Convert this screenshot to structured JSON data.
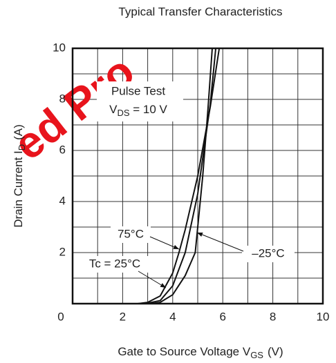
{
  "chart_data": {
    "type": "line",
    "title": "Typical Transfer Characteristics",
    "watermark": "ed Pro",
    "xlabel": {
      "text": "Gate to Source Voltage  V",
      "sub": "GS",
      "unit": "(V)"
    },
    "ylabel": {
      "text": "Drain Current  I",
      "sub": "D",
      "unit": "(A)"
    },
    "annotation": {
      "line1": "Pulse Test",
      "line2_text": "V",
      "line2_sub": "DS",
      "line2_rest": " = 10 V"
    },
    "xlim": [
      0,
      10
    ],
    "ylim": [
      0,
      10
    ],
    "xticks": [
      0,
      2,
      4,
      6,
      8,
      10
    ],
    "yticks": [
      2,
      4,
      6,
      8,
      10
    ],
    "x_minor_grid": [
      1,
      3,
      5,
      7,
      9
    ],
    "y_minor_grid": [
      1,
      3,
      5,
      7,
      9
    ],
    "grid": true,
    "series": [
      {
        "name": "75°C",
        "color": "#111",
        "x": [
          2.6,
          3.0,
          3.5,
          4.0,
          4.25,
          4.5,
          5.0,
          5.5,
          5.86
        ],
        "values": [
          0,
          0.05,
          0.3,
          1.2,
          2,
          2.9,
          5,
          7.7,
          10
        ]
      },
      {
        "name": "Tc = 25°C",
        "color": "#111",
        "x": [
          2.9,
          3.5,
          4.0,
          4.5,
          5.0,
          5.5,
          5.72
        ],
        "values": [
          0,
          0.12,
          0.7,
          2,
          4.3,
          7.8,
          10
        ]
      },
      {
        "name": "–25°C",
        "color": "#111",
        "x": [
          3.1,
          3.5,
          4.0,
          4.5,
          4.9,
          5.2,
          5.4,
          5.58
        ],
        "values": [
          0,
          0.05,
          0.35,
          1.1,
          2,
          5,
          7.5,
          10
        ]
      }
    ]
  }
}
